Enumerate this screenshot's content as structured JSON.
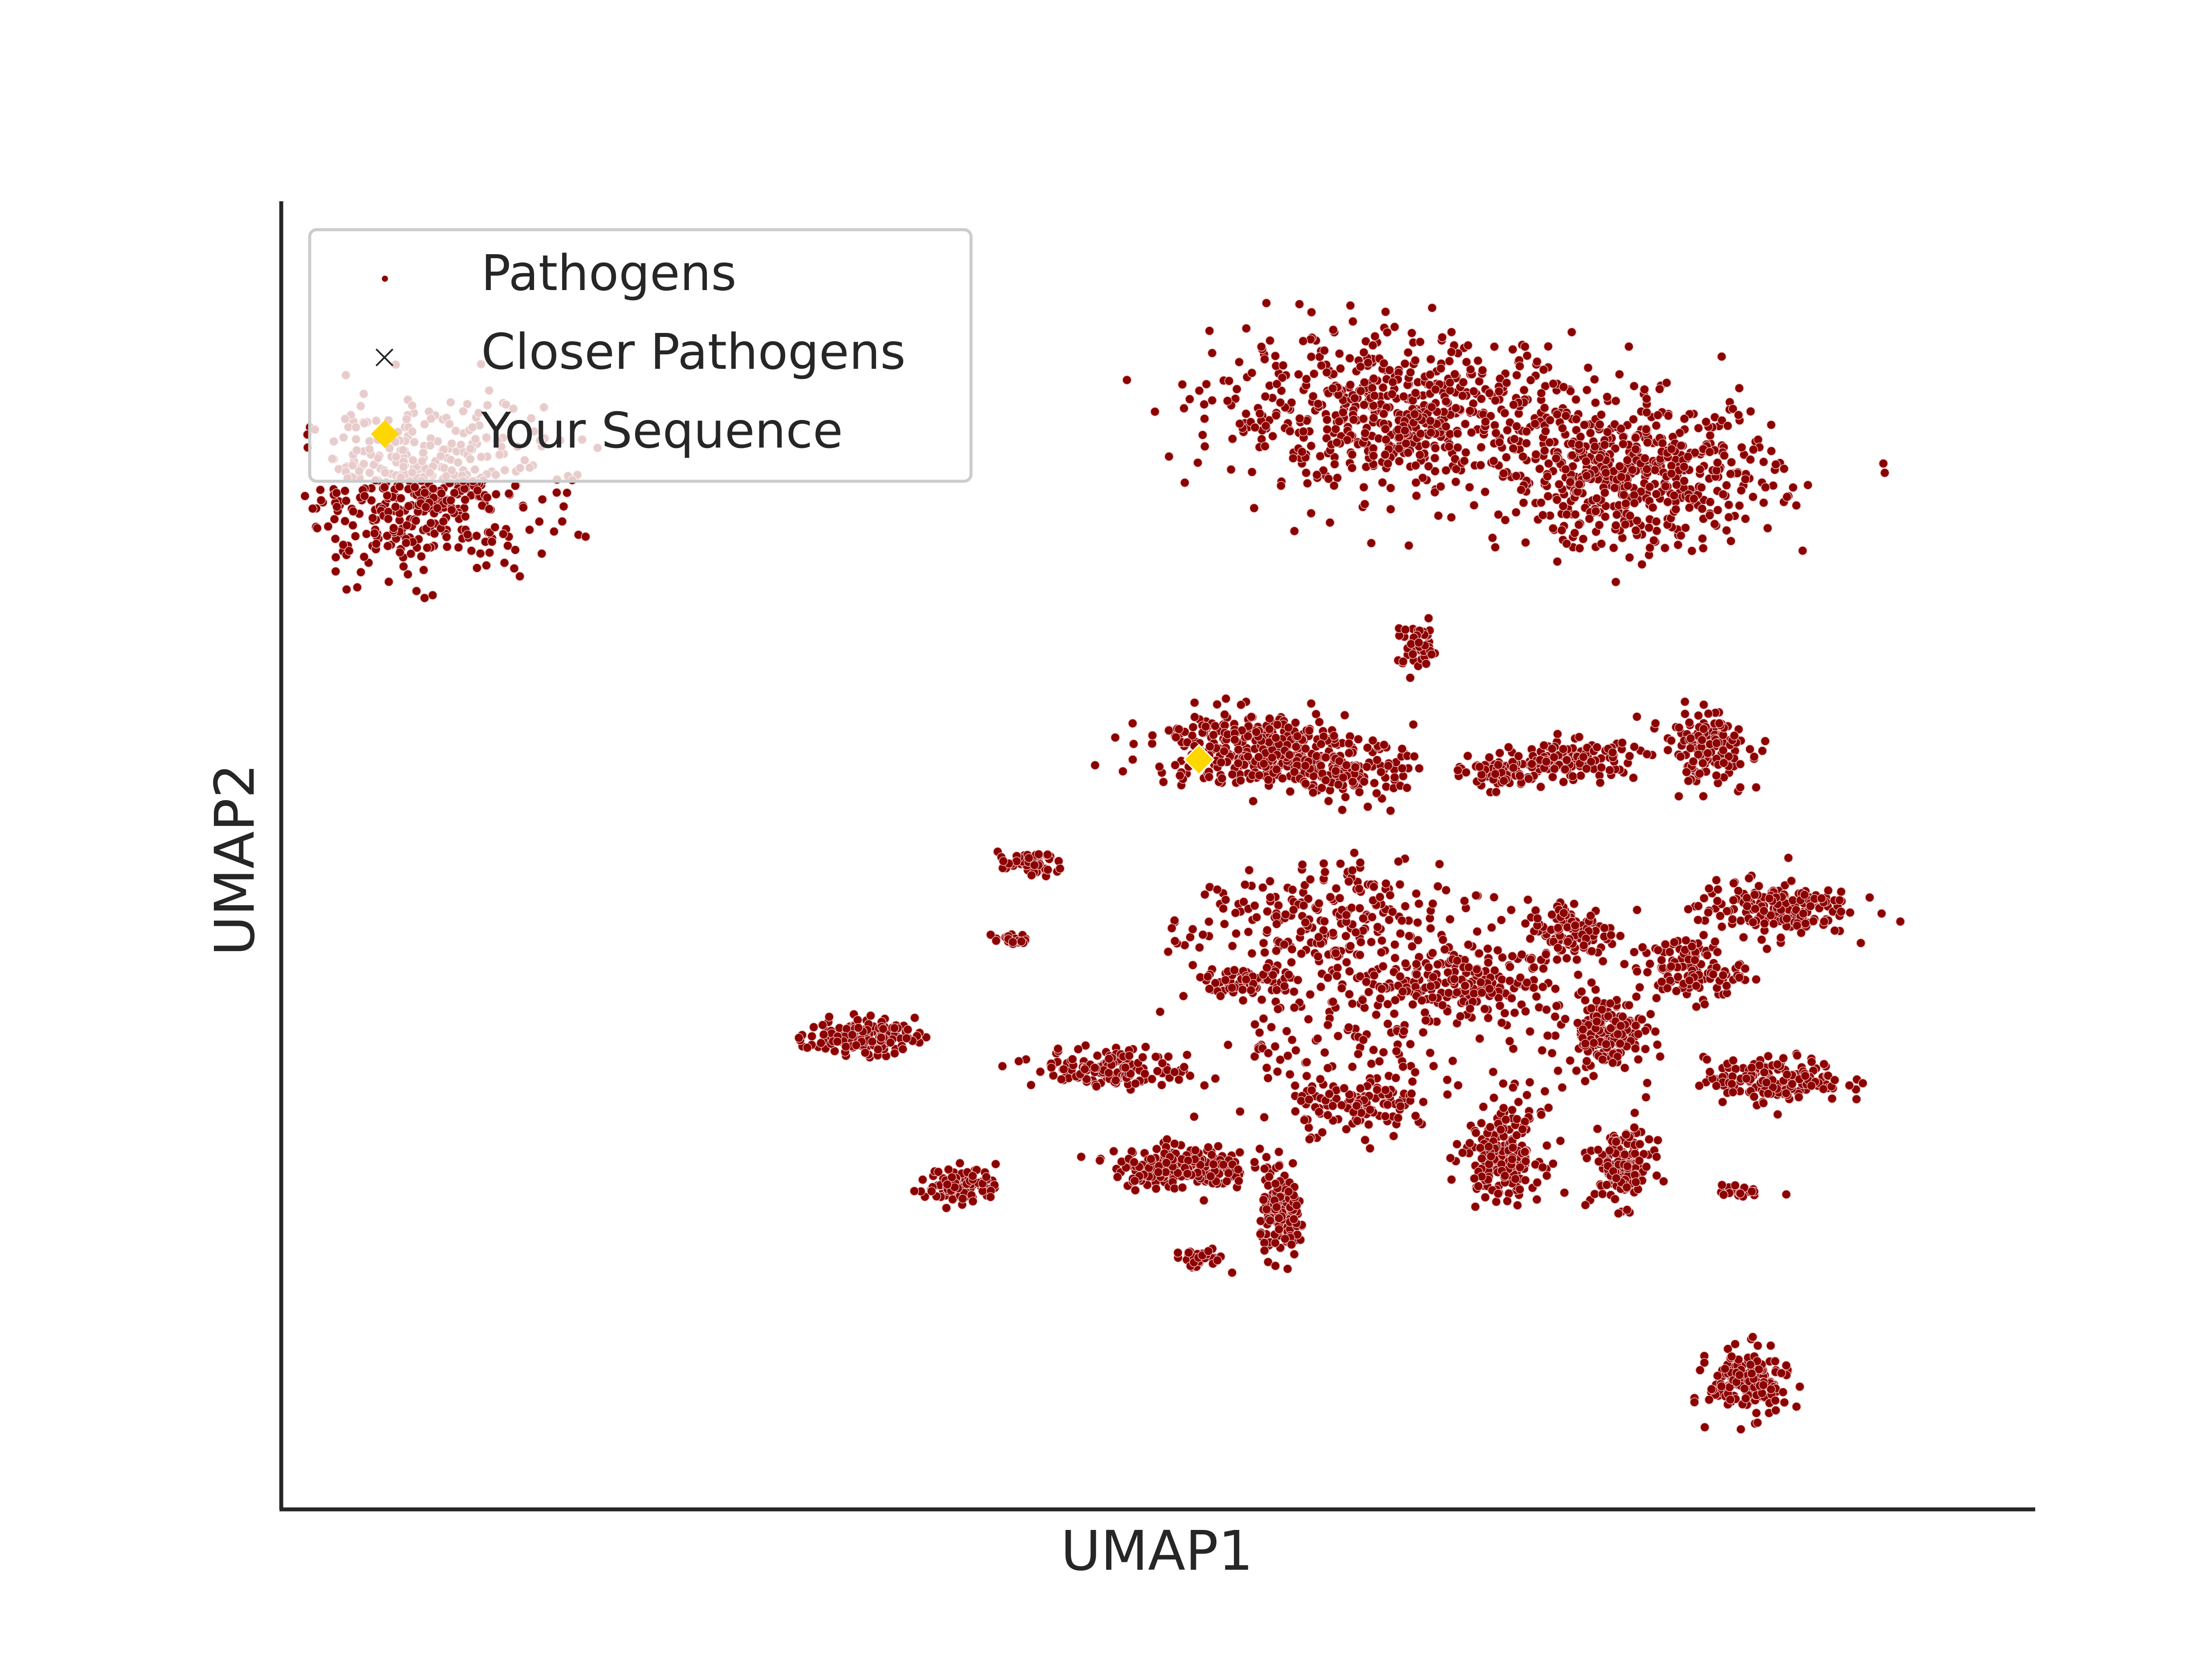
{
  "chart_data": {
    "type": "scatter",
    "xlabel": "UMAP1",
    "ylabel": "UMAP2",
    "xlim": [
      0,
      100
    ],
    "ylim": [
      0,
      100
    ],
    "ticks_visible": false,
    "grid": false,
    "legend_position": "top-left",
    "colors": {
      "pathogens": "#8b0000",
      "pathogens_edge": "#f2c4c4",
      "your_sequence": "#ffd700",
      "axis": "#262626"
    },
    "legend": [
      {
        "name": "Pathogens",
        "marker": "dot"
      },
      {
        "name": "Closer Pathogens",
        "marker": "x"
      },
      {
        "name": "Your Sequence",
        "marker": "diamond"
      }
    ],
    "series": [
      {
        "name": "Pathogens",
        "clusters": [
          {
            "cx": 7,
            "cy": 81,
            "rx": 8,
            "ry": 7.5,
            "n": 500
          },
          {
            "cx": 65,
            "cy": 87,
            "rx": 12,
            "ry": 7,
            "n": 650
          },
          {
            "cx": 79,
            "cy": 82,
            "rx": 9,
            "ry": 6.5,
            "n": 550
          },
          {
            "cx": 66,
            "cy": 68,
            "rx": 1.4,
            "ry": 2.2,
            "n": 50
          },
          {
            "cx": 56,
            "cy": 60,
            "rx": 6.5,
            "ry": 3.4,
            "n": 330
          },
          {
            "cx": 62,
            "cy": 58,
            "rx": 3.5,
            "ry": 2.5,
            "n": 140
          },
          {
            "cx": 71,
            "cy": 58,
            "rx": 2.5,
            "ry": 1.5,
            "n": 90
          },
          {
            "cx": 75,
            "cy": 59,
            "rx": 4.5,
            "ry": 1.8,
            "n": 120
          },
          {
            "cx": 83,
            "cy": 60,
            "rx": 2.8,
            "ry": 3.2,
            "n": 150
          },
          {
            "cx": 43,
            "cy": 50.5,
            "rx": 2,
            "ry": 1,
            "n": 50
          },
          {
            "cx": 42,
            "cy": 44.5,
            "rx": 1.2,
            "ry": 0.6,
            "n": 20
          },
          {
            "cx": 33,
            "cy": 36.5,
            "rx": 3.5,
            "ry": 1.6,
            "n": 140
          },
          {
            "cx": 39,
            "cy": 24.5,
            "rx": 2.3,
            "ry": 1.6,
            "n": 100
          },
          {
            "cx": 48,
            "cy": 34,
            "rx": 5,
            "ry": 1.8,
            "n": 140
          },
          {
            "cx": 56,
            "cy": 41,
            "rx": 3,
            "ry": 1.4,
            "n": 70
          },
          {
            "cx": 60,
            "cy": 46,
            "rx": 8,
            "ry": 5,
            "n": 200
          },
          {
            "cx": 68,
            "cy": 41,
            "rx": 6,
            "ry": 3,
            "n": 160
          },
          {
            "cx": 75,
            "cy": 45,
            "rx": 3,
            "ry": 3,
            "n": 120
          },
          {
            "cx": 77,
            "cy": 37,
            "rx": 2.5,
            "ry": 3,
            "n": 160
          },
          {
            "cx": 82,
            "cy": 42,
            "rx": 3.5,
            "ry": 3,
            "n": 120
          },
          {
            "cx": 87,
            "cy": 47,
            "rx": 5,
            "ry": 2.5,
            "n": 180
          },
          {
            "cx": 87,
            "cy": 33,
            "rx": 4.5,
            "ry": 2,
            "n": 170
          },
          {
            "cx": 52,
            "cy": 26,
            "rx": 4.5,
            "ry": 2,
            "n": 200
          },
          {
            "cx": 62,
            "cy": 31,
            "rx": 4,
            "ry": 2.5,
            "n": 100
          },
          {
            "cx": 58,
            "cy": 22,
            "rx": 1.5,
            "ry": 3.5,
            "n": 140
          },
          {
            "cx": 71,
            "cy": 27,
            "rx": 2.5,
            "ry": 4,
            "n": 180
          },
          {
            "cx": 78,
            "cy": 26,
            "rx": 2,
            "ry": 3.5,
            "n": 140
          },
          {
            "cx": 53,
            "cy": 18.5,
            "rx": 1.7,
            "ry": 0.8,
            "n": 40
          },
          {
            "cx": 85,
            "cy": 24,
            "rx": 1.4,
            "ry": 0.6,
            "n": 20
          },
          {
            "cx": 85.5,
            "cy": 8.5,
            "rx": 2.6,
            "ry": 3,
            "n": 180
          },
          {
            "cx": 65,
            "cy": 38,
            "rx": 14,
            "ry": 10,
            "n": 280
          }
        ]
      },
      {
        "name": "Closer Pathogens",
        "points": []
      },
      {
        "name": "Your Sequence",
        "points": [
          {
            "x": 53,
            "y": 59
          }
        ]
      }
    ]
  }
}
